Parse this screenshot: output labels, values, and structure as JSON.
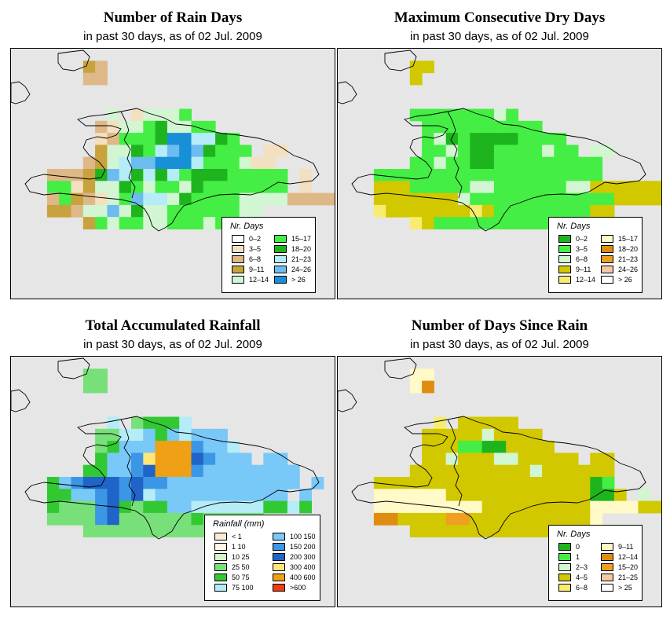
{
  "panels": [
    {
      "title": "Number of Rain Days",
      "subtitle": "in past 30 days, as of  02 Jul. 2009",
      "legend_title": "Nr. Days",
      "legend": [
        {
          "label": "0–2",
          "color": "#ffffff"
        },
        {
          "label": "3–5",
          "color": "#f2e0c0"
        },
        {
          "label": "6–8",
          "color": "#deb887"
        },
        {
          "label": "9–11",
          "color": "#c8a23c"
        },
        {
          "label": "12–14",
          "color": "#d2f5d2"
        },
        {
          "label": "15–17",
          "color": "#44ee44"
        },
        {
          "label": "18–20",
          "color": "#1eb41e"
        },
        {
          "label": "21–23",
          "color": "#b4ecf8"
        },
        {
          "label": "24–26",
          "color": "#6cbcf0"
        },
        {
          "label": "> 26",
          "color": "#1890d8"
        }
      ],
      "grid": [
        "...........................",
        "......DC...................",
        "......CC...................",
        "...........................",
        "...........................",
        "........E.BEEEF............",
        ".......CBEEFGEEFF..........",
        ".......BCFFFGJJHHGF........",
        ".......DEEGFHIJIGFFF.BB.....",
        "......CDEHIIJJJHFFFEBB.....",
        "...CCCDGIHGHGHFGGGFFFFF.B...",
        "...FFBDEEGFEFFEGFFFFFFF.B...",
        "...CFDCBEFIHHEGFFFFEEEECCCC.",
        "...DDCEEIEGEEFFFFFFEE.......",
        "......DFEFFEEFFFEFFEE.......",
        "...........................",
        "...........................",
        "...........................",
        "...........................",
        "..........................."
      ]
    },
    {
      "title": "Maximum Consecutive Dry Days",
      "subtitle": "in past 30 days, as of  02 Jul. 2009",
      "legend_title": "Nr. Days",
      "legend": [
        {
          "label": "0–2",
          "color": "#1eb41e"
        },
        {
          "label": "3–5",
          "color": "#44ee44"
        },
        {
          "label": "6–8",
          "color": "#d2f5d2"
        },
        {
          "label": "9–11",
          "color": "#d2c800"
        },
        {
          "label": "12–14",
          "color": "#f8ec70"
        },
        {
          "label": "15–17",
          "color": "#fffac8"
        },
        {
          "label": "18–20",
          "color": "#e08c10"
        },
        {
          "label": "21–23",
          "color": "#f0a020"
        },
        {
          "label": "24–26",
          "color": "#f8c8a0"
        },
        {
          "label": "> 26",
          "color": "#ffffff"
        }
      ],
      "grid": [
        "...........................",
        "......DD...................",
        "......D....................",
        "...........................",
        "...........................",
        "......BBBBBBBCB............",
        ".......BBBBBBBBBB..........",
        ".......BCABAAAABBBB........",
        ".......BBCBAABBBBCBB.CC.....",
        "......BBCBBAABBBBBBBBB......",
        "...BBBBBBBBBBBBBBBBBBB......",
        "...DDDBBBBBCCBBBBBBCCDDDDDD.",
        "...DDDDDDDCBBBBBBBBBBBBDDDD.",
        "...EDDDDDDDEDBBBBBBBBDD.....",
        "......EDBBBBBBBBBBBBB.......",
        "...........................",
        "...........................",
        "...........................",
        "...........................",
        "..........................."
      ]
    },
    {
      "title": "Total Accumulated Rainfall",
      "subtitle": "in past 30 days, as of  02 Jul. 2009",
      "legend_title": "Rainfall (mm)",
      "legend": [
        {
          "label": "< 1",
          "color": "#fcecd4"
        },
        {
          "label": "1    10",
          "color": "#fff8e0"
        },
        {
          "label": "10    25",
          "color": "#d2f8c8"
        },
        {
          "label": "25    50",
          "color": "#78e078"
        },
        {
          "label": "50    75",
          "color": "#32c832"
        },
        {
          "label": "75    100",
          "color": "#b4ecf8"
        },
        {
          "label": "100    150",
          "color": "#78c8f8"
        },
        {
          "label": "150    200",
          "color": "#3c96e6"
        },
        {
          "label": "200    300",
          "color": "#2064c8"
        },
        {
          "label": "300    400",
          "color": "#ffe678"
        },
        {
          "label": "400    600",
          "color": "#f0a014"
        },
        {
          "label": ">600",
          "color": "#f03c14"
        }
      ],
      "grid": [
        "...........................",
        "......DD...................",
        "......DD...................",
        "...........................",
        "...........................",
        "........F.DEEEF............",
        ".......DDFFGEGFGGG.........",
        ".......DEGGGKKKHGGF........",
        ".......EGGHJKKKIHGGG.GG.....",
        "......EEGGHIKKKHGGGGGGGG....",
        "...EGHIIIHIHHGGGGGGGGGGG.G..",
        "...EEGGHIHIFGGGGGGGGGGG.G...",
        "...EDDDHIEDEEGGFFFFFFEEFE...",
        "...DDDDHIDDDDDDEDDDDD.......",
        "......DDDDDDDDDDDDD.........",
        "...........................",
        "...........................",
        "...........................",
        "...........................",
        "..........................."
      ]
    },
    {
      "title": "Number of Days Since Rain",
      "subtitle": "in past 30 days, as of  02 Jul. 2009",
      "legend_title": "Nr. Days",
      "legend": [
        {
          "label": "0",
          "color": "#1eb41e"
        },
        {
          "label": "1",
          "color": "#44ee44"
        },
        {
          "label": "2–3",
          "color": "#d2f5d2"
        },
        {
          "label": "4–5",
          "color": "#d2c800"
        },
        {
          "label": "6–8",
          "color": "#f8ec70"
        },
        {
          "label": "9–11",
          "color": "#fffac8"
        },
        {
          "label": "12–14",
          "color": "#e08c10"
        },
        {
          "label": "15–20",
          "color": "#f0a020"
        },
        {
          "label": "21–25",
          "color": "#f8c8a0"
        },
        {
          "label": "> 25",
          "color": "#ffffff"
        }
      ],
      "grid": [
        "...........................",
        "......FF...................",
        "......FG...................",
        "...........................",
        "...........................",
        "........E.DDDDD............",
        ".......DDDDDCDDDD..........",
        ".......DDDBBAADDDD.........",
        ".......DDCDDDCCDDDDD.DD.....",
        "......DDDDDDDDDDCDDDDDD.....",
        "...DDDDDDDDDDDDDDDDDDAB.....",
        "...FFFFFFDDDDDDDDDDDDAAD.C..",
        "...FFFFFFFFFDDDDDDDDDFFFFDDD",
        "...GGDDDDHHDDDDDDDDDDF......",
        "......DDDDDDDDDDDDDDD.......",
        "...........................",
        "...........................",
        "...........................",
        "...........................",
        "..........................."
      ]
    }
  ]
}
